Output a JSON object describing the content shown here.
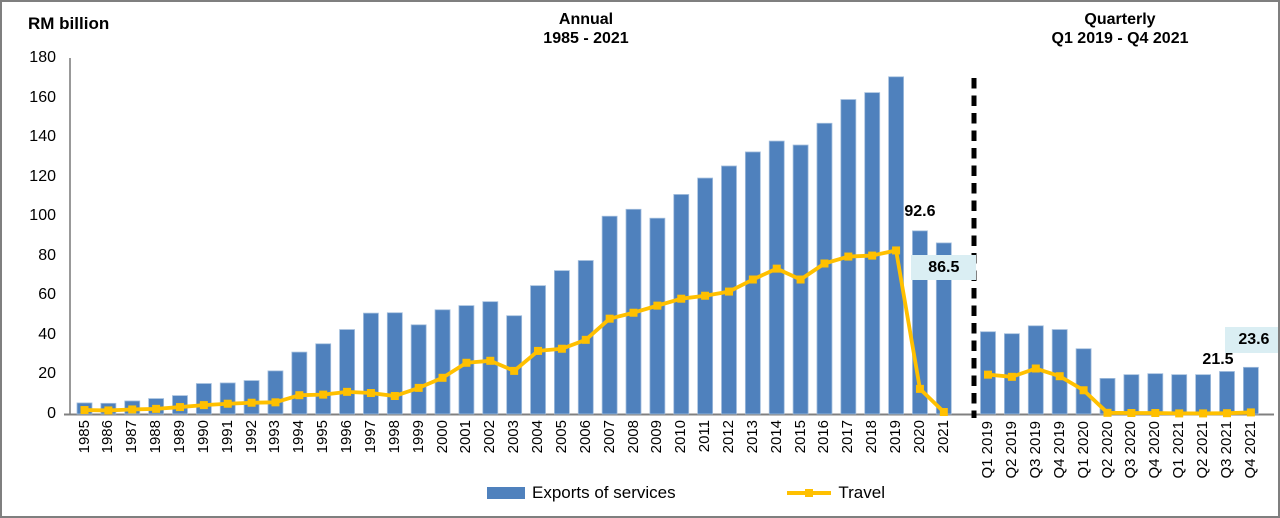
{
  "chart": {
    "y_axis_title": "RM billion",
    "annual_title_line1": "Annual",
    "annual_title_line2": "1985 - 2021",
    "quarterly_title_line1": "Quarterly",
    "quarterly_title_line2": "Q1 2019 - Q4 2021",
    "legend": [
      {
        "label": "Exports of services",
        "type": "bar",
        "color": "#4F81BD"
      },
      {
        "label": "Travel",
        "type": "line",
        "color": "#FFC000"
      }
    ],
    "annotation_box_color": "#DAEEF3"
  },
  "chart_data": [
    {
      "panel": "annual",
      "type": "bar",
      "title": "Annual 1985 - 2021",
      "ylabel": "RM billion",
      "ylim": [
        0,
        180
      ],
      "yticks": [
        0,
        20,
        40,
        60,
        80,
        100,
        120,
        140,
        160,
        180
      ],
      "grid": false,
      "legend_position": "bottom",
      "categories": [
        "1985",
        "1986",
        "1987",
        "1988",
        "1989",
        "1990",
        "1991",
        "1992",
        "1993",
        "1994",
        "1995",
        "1996",
        "1997",
        "1998",
        "1999",
        "2000",
        "2001",
        "2002",
        "2003",
        "2004",
        "2005",
        "2006",
        "2007",
        "2008",
        "2009",
        "2010",
        "2011",
        "2012",
        "2013",
        "2014",
        "2015",
        "2016",
        "2017",
        "2018",
        "2019",
        "2020",
        "2021"
      ],
      "series": [
        {
          "name": "Exports of services",
          "type": "bar",
          "color": "#4F81BD",
          "values": [
            5.6,
            5.4,
            6.6,
            7.8,
            9.3,
            15.4,
            15.7,
            16.9,
            21.8,
            31.3,
            35.5,
            42.7,
            51.0,
            51.2,
            45.1,
            52.7,
            54.8,
            56.8,
            49.7,
            64.9,
            72.5,
            77.6,
            100.0,
            103.5,
            99.0,
            111.0,
            119.3,
            125.4,
            132.5,
            138.0,
            136.0,
            147.0,
            159.0,
            162.5,
            170.5,
            92.6,
            86.5
          ]
        },
        {
          "name": "Travel",
          "type": "line",
          "color": "#FFC000",
          "values": [
            2.0,
            1.8,
            2.3,
            2.6,
            3.5,
            4.5,
            5.2,
            5.7,
            5.9,
            9.5,
            9.8,
            11.2,
            10.6,
            9.1,
            13.2,
            18.3,
            25.9,
            26.9,
            21.8,
            31.9,
            33.0,
            37.5,
            48.2,
            51.2,
            54.8,
            58.3,
            59.8,
            61.9,
            68.0,
            73.5,
            68.0,
            76.1,
            79.6,
            80.1,
            82.7,
            12.7,
            1.0
          ]
        }
      ],
      "annotations": [
        {
          "text": "92.6",
          "category": "2020",
          "series": "Exports of services",
          "boxed": false
        },
        {
          "text": "86.5",
          "category": "2021",
          "series": "Exports of services",
          "boxed": true
        }
      ]
    },
    {
      "panel": "quarterly",
      "type": "bar",
      "title": "Quarterly Q1 2019 - Q4 2021",
      "ylabel": "RM billion",
      "ylim": [
        0,
        180
      ],
      "yticks": [
        0,
        20,
        40,
        60,
        80,
        100,
        120,
        140,
        160,
        180
      ],
      "grid": false,
      "categories": [
        "Q1 2019",
        "Q2 2019",
        "Q3 2019",
        "Q4 2019",
        "Q1 2020",
        "Q2 2020",
        "Q3 2020",
        "Q4 2020",
        "Q1 2021",
        "Q2 2021",
        "Q3 2021",
        "Q4 2021"
      ],
      "series": [
        {
          "name": "Exports of services",
          "type": "bar",
          "color": "#4F81BD",
          "values": [
            41.6,
            40.6,
            44.6,
            42.7,
            33.0,
            18.0,
            19.9,
            20.4,
            19.9,
            19.9,
            21.5,
            23.6
          ]
        },
        {
          "name": "Travel",
          "type": "line",
          "color": "#FFC000",
          "values": [
            19.9,
            18.8,
            23.0,
            19.1,
            12.0,
            0.6,
            0.5,
            0.5,
            0.3,
            0.3,
            0.4,
            0.8
          ]
        }
      ],
      "annotations": [
        {
          "text": "21.5",
          "category": "Q3 2021",
          "series": "Exports of services",
          "boxed": false
        },
        {
          "text": "23.6",
          "category": "Q4 2021",
          "series": "Exports of services",
          "boxed": true
        }
      ]
    }
  ]
}
